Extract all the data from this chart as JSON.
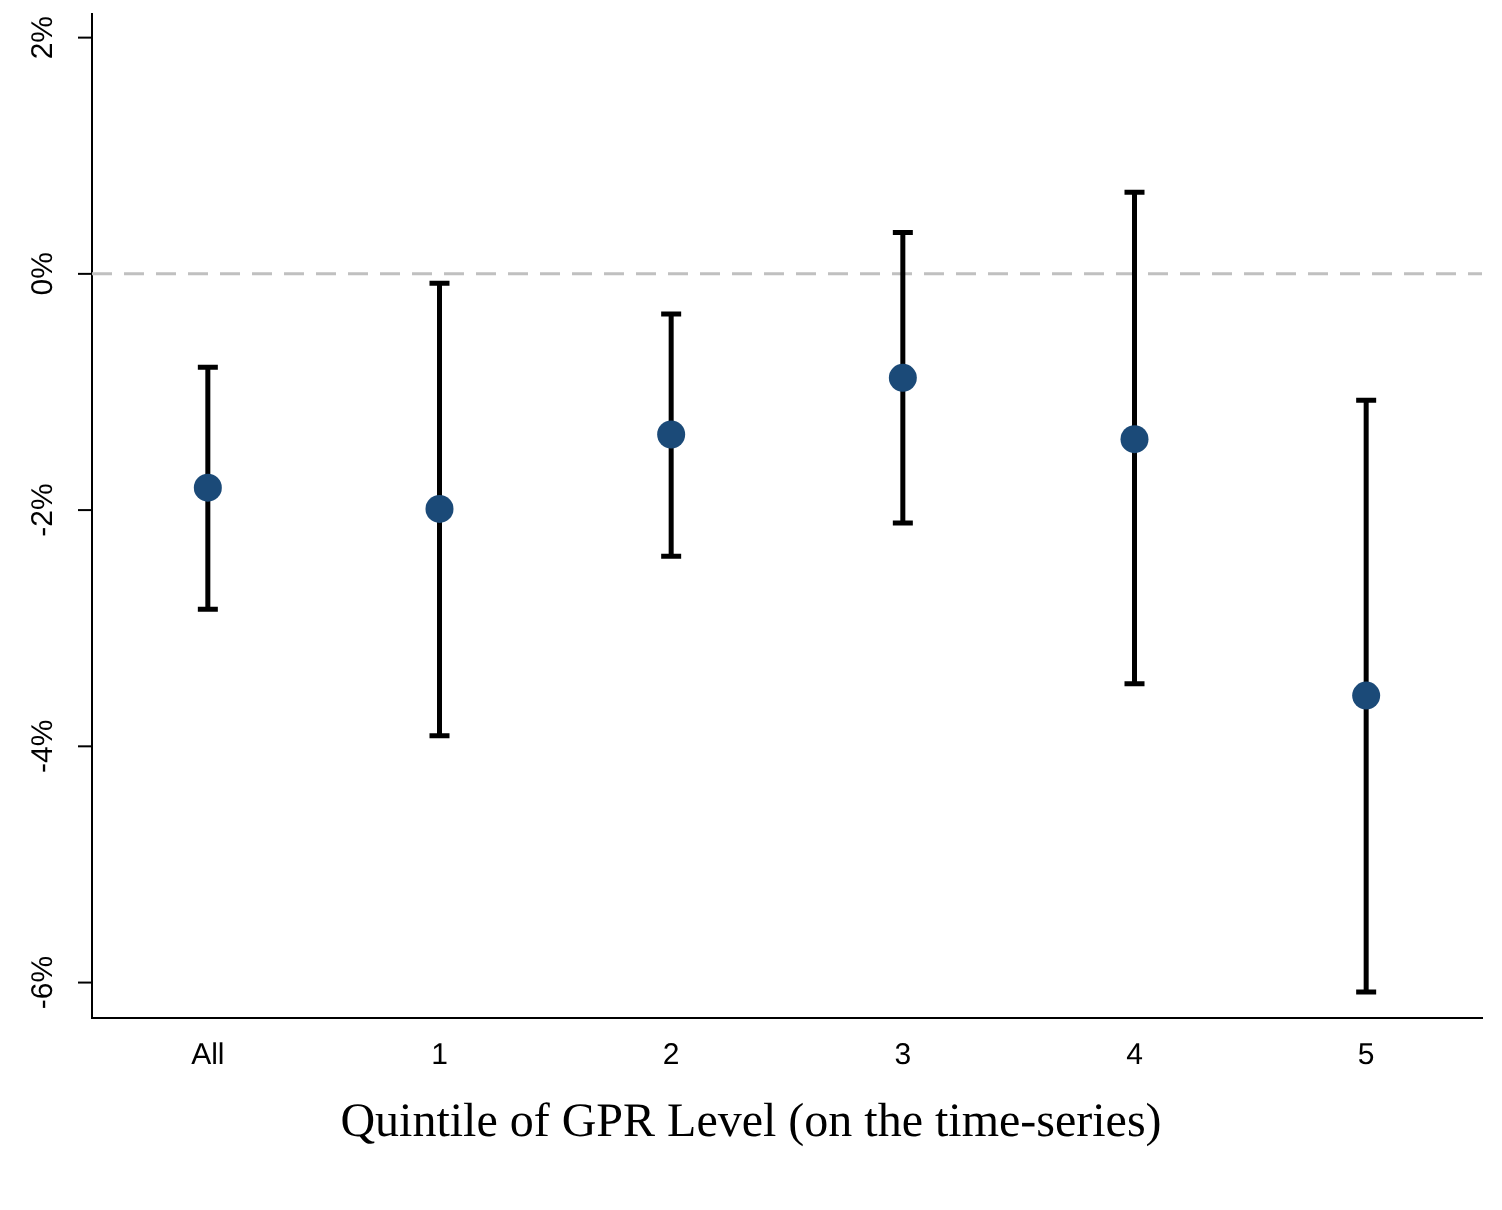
{
  "chart_data": {
    "type": "scatter",
    "xlabel": "Quintile of GPR Level (on the time-series)",
    "categories": [
      "All",
      "1",
      "2",
      "3",
      "4",
      "5"
    ],
    "series": [
      {
        "color": "#1b4a78",
        "values": [
          -1.81,
          -1.99,
          -1.36,
          -0.88,
          -1.4,
          -3.57
        ],
        "errors": [
          [
            -2.84,
            -0.79
          ],
          [
            -3.91,
            -0.08
          ],
          [
            -2.39,
            -0.34
          ],
          [
            -2.11,
            0.35
          ],
          [
            -3.47,
            0.69
          ],
          [
            -6.08,
            -1.07
          ]
        ]
      }
    ],
    "ylim": [
      -6.3,
      2.2
    ],
    "yticks": [
      {
        "value": -6,
        "label": "-6%"
      },
      {
        "value": -4,
        "label": "-4%"
      },
      {
        "value": -2,
        "label": "-2%"
      },
      {
        "value": 0,
        "label": "0%"
      },
      {
        "value": 2,
        "label": "2%"
      }
    ],
    "ref_lines": [
      {
        "axis": "y",
        "value": 0,
        "color": "#c0c0c0",
        "line_style": "dashed"
      }
    ],
    "marker": "circle",
    "grid": false,
    "legend": false
  }
}
